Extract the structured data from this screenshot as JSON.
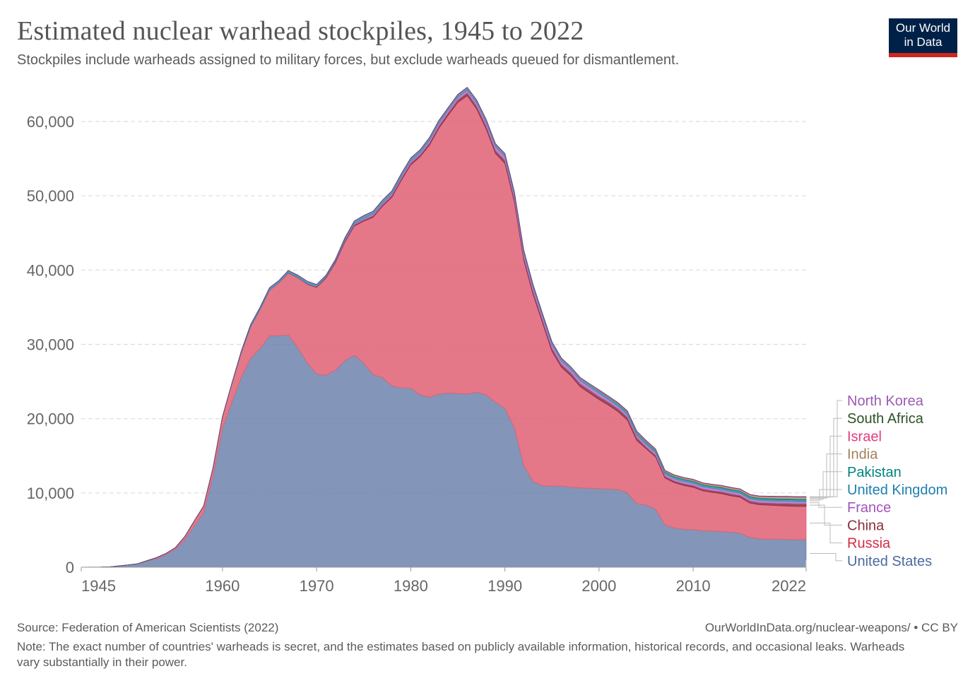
{
  "header": {
    "title": "Estimated nuclear warhead stockpiles, 1945 to 2022",
    "subtitle": "Stockpiles include warheads assigned to military forces, but exclude warheads queued for dismantlement.",
    "logo_line1": "Our World",
    "logo_line2": "in Data"
  },
  "footer": {
    "source": "Source: Federation of American Scientists (2022)",
    "url": "OurWorldInData.org/nuclear-weapons/ • CC BY",
    "note": "Note: The exact number of countries' warheads is secret, and the estimates based on publicly available information, historical records, and occasional leaks. Warheads vary substantially in their power."
  },
  "colors": {
    "logo_bg": "#002147",
    "logo_accent": "#ce261e"
  },
  "chart_data": {
    "type": "area",
    "stacked": true,
    "title": "Estimated nuclear warhead stockpiles, 1945 to 2022",
    "xlabel": "",
    "ylabel": "",
    "ylim": [
      0,
      65000
    ],
    "xlim": [
      1945,
      2022
    ],
    "x_ticks": [
      "1945",
      "1960",
      "1970",
      "1980",
      "1990",
      "2000",
      "2010",
      "2022"
    ],
    "x_tick_values": [
      1945,
      1960,
      1970,
      1980,
      1990,
      2000,
      2010,
      2022
    ],
    "y_ticks": [
      "0",
      "10,000",
      "20,000",
      "30,000",
      "40,000",
      "50,000",
      "60,000"
    ],
    "y_tick_values": [
      0,
      10000,
      20000,
      30000,
      40000,
      50000,
      60000
    ],
    "grid": "horizontal dashed",
    "legend_position": "right",
    "x": [
      1945,
      1946,
      1947,
      1948,
      1949,
      1950,
      1951,
      1952,
      1953,
      1954,
      1955,
      1956,
      1957,
      1958,
      1959,
      1960,
      1961,
      1962,
      1963,
      1964,
      1965,
      1966,
      1967,
      1968,
      1969,
      1970,
      1971,
      1972,
      1973,
      1974,
      1975,
      1976,
      1977,
      1978,
      1979,
      1980,
      1981,
      1982,
      1983,
      1984,
      1985,
      1986,
      1987,
      1988,
      1989,
      1990,
      1991,
      1992,
      1993,
      1994,
      1995,
      1996,
      1997,
      1998,
      1999,
      2000,
      2001,
      2002,
      2003,
      2004,
      2005,
      2006,
      2007,
      2008,
      2009,
      2010,
      2011,
      2012,
      2013,
      2014,
      2015,
      2016,
      2017,
      2018,
      2019,
      2020,
      2021,
      2022
    ],
    "series": [
      {
        "name": "United States",
        "color": "#6d83ab",
        "label_color": "#4c6a9c",
        "values": [
          2,
          9,
          13,
          50,
          170,
          300,
          438,
          841,
          1169,
          1703,
          2422,
          3692,
          5543,
          7345,
          12298,
          18638,
          22229,
          25540,
          28133,
          29463,
          31139,
          31175,
          31255,
          29561,
          27552,
          26008,
          25830,
          26516,
          27835,
          28537,
          27519,
          25914,
          25542,
          24418,
          24138,
          24104,
          23208,
          22886,
          23305,
          23459,
          23368,
          23317,
          23575,
          23205,
          22217,
          21392,
          18799,
          13708,
          11511,
          10979,
          10904,
          10923,
          10777,
          10690,
          10625,
          10577,
          10526,
          10457,
          10027,
          8570,
          8360,
          7853,
          5709,
          5273,
          5113,
          5066,
          4897,
          4881,
          4804,
          4717,
          4571,
          4018,
          3822,
          3785,
          3805,
          3750,
          3708,
          3708
        ]
      },
      {
        "name": "Russia",
        "color": "#e06073",
        "label_color": "#d42b45",
        "values": [
          0,
          0,
          0,
          0,
          1,
          5,
          25,
          50,
          120,
          150,
          200,
          426,
          660,
          869,
          1060,
          1605,
          2471,
          3322,
          4238,
          5221,
          6129,
          7089,
          8339,
          9399,
          10538,
          11643,
          13092,
          14478,
          15915,
          17385,
          19055,
          21205,
          23044,
          25393,
          27935,
          30062,
          32049,
          33952,
          35804,
          37431,
          39197,
          40159,
          38107,
          35804,
          33480,
          32980,
          30424,
          27614,
          25167,
          21902,
          18161,
          16000,
          15000,
          13600,
          12800,
          12000,
          11300,
          10500,
          9800,
          8500,
          7600,
          7000,
          6300,
          6100,
          5900,
          5700,
          5400,
          5200,
          5100,
          4900,
          4840,
          4630,
          4597,
          4577,
          4490,
          4495,
          4477,
          4477
        ]
      },
      {
        "name": "China",
        "color": "#8c2a3e",
        "label_color": "#883039",
        "values": [
          0,
          0,
          0,
          0,
          0,
          0,
          0,
          0,
          0,
          0,
          0,
          0,
          0,
          0,
          0,
          0,
          0,
          0,
          0,
          0,
          5,
          20,
          25,
          35,
          50,
          75,
          100,
          130,
          150,
          170,
          185,
          190,
          200,
          210,
          225,
          240,
          260,
          280,
          300,
          325,
          350,
          380,
          410,
          425,
          415,
          420,
          425,
          420,
          415,
          410,
          400,
          400,
          400,
          400,
          400,
          400,
          400,
          400,
          400,
          400,
          235,
          235,
          235,
          235,
          240,
          240,
          240,
          240,
          250,
          260,
          260,
          270,
          280,
          290,
          300,
          350,
          350,
          350
        ]
      },
      {
        "name": "France",
        "color": "#b26ec5",
        "label_color": "#a652ba",
        "values": [
          0,
          0,
          0,
          0,
          0,
          0,
          0,
          0,
          0,
          0,
          0,
          0,
          0,
          0,
          0,
          0,
          0,
          0,
          0,
          4,
          32,
          36,
          36,
          36,
          36,
          36,
          45,
          70,
          116,
          145,
          188,
          212,
          228,
          235,
          270,
          280,
          274,
          335,
          359,
          360,
          355,
          360,
          420,
          470,
          505,
          505,
          540,
          540,
          525,
          510,
          500,
          450,
          450,
          450,
          450,
          470,
          350,
          350,
          350,
          350,
          350,
          350,
          300,
          300,
          300,
          300,
          300,
          300,
          300,
          300,
          300,
          300,
          300,
          300,
          290,
          290,
          290,
          290
        ]
      },
      {
        "name": "United Kingdom",
        "color": "#3d8bb0",
        "label_color": "#1d7fb0",
        "values": [
          0,
          0,
          0,
          0,
          0,
          0,
          0,
          0,
          1,
          5,
          10,
          15,
          20,
          22,
          25,
          30,
          50,
          205,
          280,
          310,
          310,
          270,
          270,
          280,
          308,
          280,
          220,
          220,
          275,
          325,
          350,
          350,
          350,
          350,
          350,
          350,
          350,
          335,
          320,
          270,
          300,
          300,
          300,
          300,
          300,
          300,
          300,
          300,
          300,
          250,
          300,
          300,
          260,
          280,
          280,
          280,
          280,
          280,
          280,
          280,
          280,
          225,
          225,
          225,
          225,
          225,
          225,
          225,
          225,
          225,
          215,
          215,
          215,
          215,
          215,
          225,
          225,
          225
        ]
      },
      {
        "name": "Pakistan",
        "color": "#00847e",
        "label_color": "#00847e",
        "values": [
          0,
          0,
          0,
          0,
          0,
          0,
          0,
          0,
          0,
          0,
          0,
          0,
          0,
          0,
          0,
          0,
          0,
          0,
          0,
          0,
          0,
          0,
          0,
          0,
          0,
          0,
          0,
          0,
          0,
          0,
          0,
          0,
          0,
          0,
          0,
          0,
          0,
          0,
          0,
          0,
          0,
          0,
          0,
          0,
          0,
          0,
          0,
          0,
          0,
          0,
          0,
          0,
          0,
          15,
          25,
          30,
          40,
          50,
          60,
          70,
          80,
          90,
          100,
          110,
          110,
          110,
          110,
          120,
          120,
          130,
          130,
          140,
          140,
          150,
          160,
          160,
          165,
          165
        ]
      },
      {
        "name": "India",
        "color": "#c4a15a",
        "label_color": "#a2805c",
        "values": [
          0,
          0,
          0,
          0,
          0,
          0,
          0,
          0,
          0,
          0,
          0,
          0,
          0,
          0,
          0,
          0,
          0,
          0,
          0,
          0,
          0,
          0,
          0,
          0,
          0,
          0,
          0,
          0,
          0,
          0,
          0,
          0,
          0,
          0,
          0,
          0,
          0,
          0,
          0,
          0,
          0,
          0,
          0,
          0,
          0,
          0,
          0,
          0,
          0,
          0,
          0,
          0,
          0,
          15,
          25,
          30,
          40,
          50,
          60,
          70,
          75,
          80,
          90,
          90,
          100,
          100,
          100,
          110,
          110,
          120,
          120,
          130,
          130,
          140,
          150,
          150,
          156,
          160
        ]
      },
      {
        "name": "Israel",
        "color": "#e56e9a",
        "label_color": "#e23a80",
        "values": [
          0,
          0,
          0,
          0,
          0,
          0,
          0,
          0,
          0,
          0,
          0,
          0,
          0,
          0,
          0,
          0,
          0,
          0,
          0,
          0,
          0,
          0,
          2,
          5,
          10,
          13,
          15,
          20,
          25,
          31,
          35,
          40,
          45,
          50,
          55,
          57,
          60,
          60,
          60,
          60,
          65,
          70,
          75,
          80,
          80,
          80,
          80,
          80,
          80,
          80,
          80,
          80,
          80,
          80,
          80,
          80,
          80,
          80,
          80,
          80,
          80,
          80,
          80,
          80,
          80,
          80,
          80,
          80,
          80,
          80,
          80,
          80,
          80,
          80,
          90,
          90,
          90,
          90
        ]
      },
      {
        "name": "South Africa",
        "color": "#1f4a22",
        "label_color": "#2b5225",
        "values": [
          0,
          0,
          0,
          0,
          0,
          0,
          0,
          0,
          0,
          0,
          0,
          0,
          0,
          0,
          0,
          0,
          0,
          0,
          0,
          0,
          0,
          0,
          0,
          0,
          0,
          0,
          0,
          0,
          0,
          0,
          0,
          0,
          0,
          0,
          0,
          0,
          0,
          1,
          1,
          2,
          3,
          3,
          4,
          5,
          6,
          6,
          4,
          2,
          0,
          0,
          0,
          0,
          0,
          0,
          0,
          0,
          0,
          0,
          0,
          0,
          0,
          0,
          0,
          0,
          0,
          0,
          0,
          0,
          0,
          0,
          0,
          0,
          0,
          0,
          0,
          0,
          0,
          0
        ]
      },
      {
        "name": "North Korea",
        "color": "#8e5aa8",
        "label_color": "#9a5bb5",
        "values": [
          0,
          0,
          0,
          0,
          0,
          0,
          0,
          0,
          0,
          0,
          0,
          0,
          0,
          0,
          0,
          0,
          0,
          0,
          0,
          0,
          0,
          0,
          0,
          0,
          0,
          0,
          0,
          0,
          0,
          0,
          0,
          0,
          0,
          0,
          0,
          0,
          0,
          0,
          0,
          0,
          0,
          0,
          0,
          0,
          0,
          0,
          0,
          0,
          0,
          0,
          0,
          0,
          0,
          0,
          0,
          0,
          0,
          0,
          0,
          0,
          0,
          2,
          4,
          6,
          8,
          10,
          10,
          10,
          12,
          12,
          15,
          15,
          20,
          20,
          25,
          30,
          30,
          30
        ]
      }
    ]
  }
}
